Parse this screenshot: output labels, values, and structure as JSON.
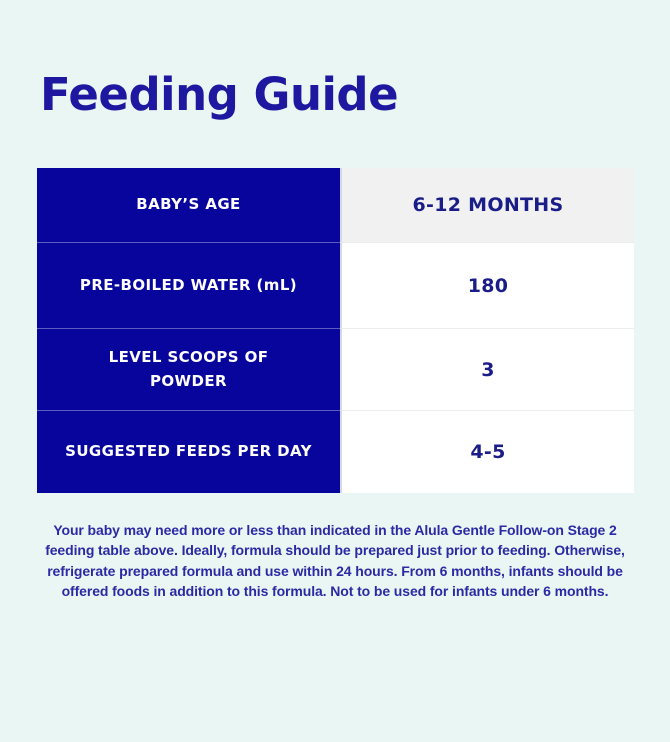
{
  "title": "Feeding Guide",
  "table": {
    "rows": [
      {
        "label": "BABY’S AGE",
        "value": "6-12 MONTHS"
      },
      {
        "label": "PRE-BOILED WATER (mL)",
        "value": "180"
      },
      {
        "label": [
          "LEVEL SCOOPS OF",
          "POWDER"
        ],
        "value": "3"
      },
      {
        "label": "SUGGESTED FEEDS PER DAY",
        "value": "4-5"
      }
    ]
  },
  "footer": {
    "text": "Your baby may need more or less than indicated in the Alula Gentle Follow-on Stage 2 feeding table above. Ideally, formula should be prepared just prior to feeding. Otherwise, refrigerate prepared formula and use within 24 hours. From 6 months, infants should be offered foods in addition to this formula. Not to be used for infants under 6 months."
  },
  "colors": {
    "page_background": "#EAF6F3",
    "title_text": "#1E17A0",
    "table_label_background": "#08059C",
    "table_label_text": "#FFFFFF",
    "table_value_text": "#1A1D87",
    "table_header_value_background": "#F1F1F1",
    "table_value_background": "#FFFFFF",
    "column_divider": "#D6D6EC",
    "footnote_text": "#2B2AA4"
  }
}
